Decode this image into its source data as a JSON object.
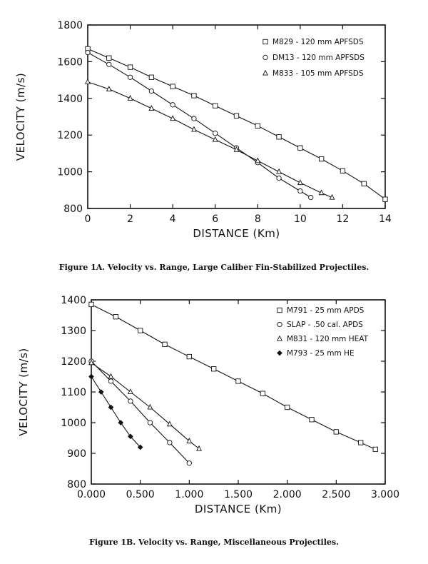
{
  "chart_data": [
    {
      "type": "line",
      "id": "1a",
      "xlabel": "DISTANCE (Km)",
      "ylabel": "VELOCITY (m/s)",
      "xlim": [
        0,
        14
      ],
      "ylim": [
        800,
        1800
      ],
      "xticks": [
        "0",
        "2",
        "4",
        "6",
        "8",
        "10",
        "12",
        "14"
      ],
      "xtick_values": [
        0,
        2,
        4,
        6,
        8,
        10,
        12,
        14
      ],
      "yticks": [
        "800",
        "1000",
        "1200",
        "1400",
        "1600",
        "1800"
      ],
      "ytick_values": [
        800,
        1000,
        1200,
        1400,
        1600,
        1800
      ],
      "legend_position": "top-right",
      "caption": "Figure 1A.  Velocity vs. Range, Large Caliber Fin-Stabilized Projectiles.",
      "series": [
        {
          "name": "M829 - 120 mm APFSDS",
          "marker": "square",
          "x": [
            0,
            1,
            2,
            3,
            4,
            5,
            6,
            7,
            8,
            9,
            10,
            11,
            12,
            13,
            14
          ],
          "y": [
            1670,
            1620,
            1570,
            1515,
            1465,
            1415,
            1360,
            1305,
            1250,
            1190,
            1130,
            1070,
            1005,
            935,
            850
          ]
        },
        {
          "name": "DM13 - 120 mm APFSDS",
          "marker": "circle",
          "x": [
            0,
            1,
            2,
            3,
            4,
            5,
            6,
            7,
            8,
            9,
            10,
            10.5
          ],
          "y": [
            1650,
            1585,
            1515,
            1440,
            1365,
            1290,
            1210,
            1130,
            1050,
            965,
            895,
            860
          ]
        },
        {
          "name": "M833 - 105 mm APFSDS",
          "marker": "triangle",
          "x": [
            0,
            1,
            2,
            3,
            4,
            5,
            6,
            7,
            8,
            9,
            10,
            11,
            11.5
          ],
          "y": [
            1490,
            1450,
            1400,
            1345,
            1290,
            1230,
            1175,
            1120,
            1060,
            1000,
            940,
            885,
            860
          ]
        }
      ]
    },
    {
      "type": "line",
      "id": "1b",
      "xlabel": "DISTANCE (Km)",
      "ylabel": "VELOCITY (m/s)",
      "xlim": [
        0,
        3
      ],
      "ylim": [
        800,
        1400
      ],
      "xticks": [
        "0.000",
        "0.500",
        "1.000",
        "1.500",
        "2.000",
        "2.500",
        "3.000"
      ],
      "xtick_values": [
        0,
        0.5,
        1,
        1.5,
        2,
        2.5,
        3
      ],
      "yticks": [
        "800",
        "900",
        "1000",
        "1100",
        "1200",
        "1300",
        "1400"
      ],
      "ytick_values": [
        800,
        900,
        1000,
        1100,
        1200,
        1300,
        1400
      ],
      "legend_position": "top-right",
      "caption": "Figure 1B.  Velocity vs. Range, Miscellaneous Projectiles.",
      "series": [
        {
          "name": "M791 - 25 mm APDS",
          "marker": "square",
          "x": [
            0,
            0.25,
            0.5,
            0.75,
            1.0,
            1.25,
            1.5,
            1.75,
            2.0,
            2.25,
            2.5,
            2.75,
            2.9
          ],
          "y": [
            1385,
            1345,
            1300,
            1255,
            1215,
            1175,
            1135,
            1095,
            1050,
            1010,
            970,
            935,
            913
          ]
        },
        {
          "name": "SLAP - .50 cal. APDS",
          "marker": "circle",
          "x": [
            0,
            0.2,
            0.4,
            0.6,
            0.8,
            1.0
          ],
          "y": [
            1200,
            1135,
            1070,
            1000,
            935,
            868
          ]
        },
        {
          "name": "M831 - 120 mm HEAT",
          "marker": "triangle",
          "x": [
            0,
            0.2,
            0.4,
            0.6,
            0.8,
            1.0,
            1.1
          ],
          "y": [
            1195,
            1150,
            1100,
            1050,
            995,
            940,
            915
          ]
        },
        {
          "name": "M793 - 25 mm HE",
          "marker": "diamond-filled",
          "x": [
            0,
            0.1,
            0.2,
            0.3,
            0.4,
            0.5
          ],
          "y": [
            1150,
            1100,
            1050,
            1000,
            955,
            920
          ]
        }
      ]
    }
  ]
}
